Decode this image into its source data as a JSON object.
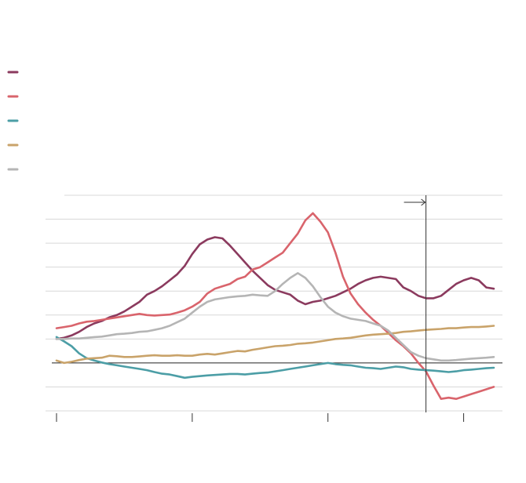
{
  "chart_data": {
    "type": "line",
    "title": "",
    "xlabel": "",
    "ylabel": "",
    "x_range": [
      0,
      58
    ],
    "y_range": [
      -2,
      7
    ],
    "zero_line": 0,
    "grid": "horizontal",
    "legend_position": "top-left",
    "marker": {
      "x": 49,
      "direction": "right"
    },
    "y_ticks": [
      -2,
      -1,
      0,
      1,
      2,
      3,
      4,
      5,
      6,
      7
    ],
    "x_ticks": [
      0,
      18,
      36,
      54
    ],
    "x": [
      0,
      1,
      2,
      3,
      4,
      5,
      6,
      7,
      8,
      9,
      10,
      11,
      12,
      13,
      14,
      15,
      16,
      17,
      18,
      19,
      20,
      21,
      22,
      23,
      24,
      25,
      26,
      27,
      28,
      29,
      30,
      31,
      32,
      33,
      34,
      35,
      36,
      37,
      38,
      39,
      40,
      41,
      42,
      43,
      44,
      45,
      46,
      47,
      48,
      49,
      50,
      51,
      52,
      53,
      54,
      55,
      56,
      57,
      58
    ],
    "series": [
      {
        "name": "",
        "color": "#8b3a5e",
        "values": [
          1.0,
          1.05,
          1.15,
          1.3,
          1.5,
          1.65,
          1.75,
          1.9,
          2.0,
          2.15,
          2.35,
          2.55,
          2.85,
          3.0,
          3.2,
          3.45,
          3.7,
          4.05,
          4.55,
          4.95,
          5.15,
          5.25,
          5.2,
          4.9,
          4.55,
          4.2,
          3.85,
          3.55,
          3.25,
          3.05,
          2.95,
          2.85,
          2.6,
          2.45,
          2.55,
          2.6,
          2.7,
          2.8,
          2.95,
          3.1,
          3.3,
          3.45,
          3.55,
          3.6,
          3.55,
          3.5,
          3.15,
          3.0,
          2.8,
          2.7,
          2.7,
          2.8,
          3.05,
          3.3,
          3.45,
          3.55,
          3.45,
          3.15,
          3.1
        ]
      },
      {
        "name": "",
        "color": "#d9646c",
        "values": [
          1.45,
          1.5,
          1.55,
          1.65,
          1.72,
          1.75,
          1.8,
          1.85,
          1.9,
          1.95,
          2.0,
          2.05,
          2.0,
          1.98,
          2.0,
          2.02,
          2.1,
          2.2,
          2.35,
          2.55,
          2.9,
          3.1,
          3.2,
          3.3,
          3.5,
          3.6,
          3.9,
          4.0,
          4.2,
          4.4,
          4.6,
          5.0,
          5.4,
          5.95,
          6.25,
          5.9,
          5.45,
          4.6,
          3.6,
          2.9,
          2.45,
          2.1,
          1.8,
          1.55,
          1.25,
          0.95,
          0.7,
          0.4,
          0.0,
          -0.35,
          -0.95,
          -1.5,
          -1.45,
          -1.5,
          -1.4,
          -1.3,
          -1.2,
          -1.1,
          -1.0
        ]
      },
      {
        "name": "",
        "color": "#4c9ea6",
        "values": [
          1.08,
          0.9,
          0.7,
          0.4,
          0.2,
          0.1,
          0.02,
          -0.05,
          -0.1,
          -0.15,
          -0.2,
          -0.25,
          -0.3,
          -0.38,
          -0.45,
          -0.48,
          -0.55,
          -0.62,
          -0.58,
          -0.55,
          -0.52,
          -0.5,
          -0.48,
          -0.46,
          -0.46,
          -0.48,
          -0.45,
          -0.42,
          -0.4,
          -0.35,
          -0.3,
          -0.25,
          -0.2,
          -0.15,
          -0.1,
          -0.05,
          0.0,
          -0.05,
          -0.08,
          -0.1,
          -0.15,
          -0.2,
          -0.22,
          -0.25,
          -0.2,
          -0.15,
          -0.18,
          -0.25,
          -0.28,
          -0.3,
          -0.32,
          -0.35,
          -0.38,
          -0.35,
          -0.3,
          -0.28,
          -0.25,
          -0.22,
          -0.2
        ]
      },
      {
        "name": "",
        "color": "#c9a36a",
        "values": [
          0.1,
          0.0,
          0.05,
          0.12,
          0.18,
          0.2,
          0.22,
          0.3,
          0.28,
          0.25,
          0.25,
          0.27,
          0.3,
          0.32,
          0.3,
          0.3,
          0.32,
          0.3,
          0.3,
          0.35,
          0.38,
          0.35,
          0.4,
          0.45,
          0.5,
          0.48,
          0.55,
          0.6,
          0.65,
          0.7,
          0.72,
          0.75,
          0.8,
          0.82,
          0.85,
          0.9,
          0.95,
          1.0,
          1.02,
          1.05,
          1.1,
          1.15,
          1.18,
          1.2,
          1.22,
          1.25,
          1.3,
          1.32,
          1.35,
          1.38,
          1.4,
          1.42,
          1.45,
          1.45,
          1.48,
          1.5,
          1.5,
          1.52,
          1.55
        ]
      },
      {
        "name": "",
        "color": "#b5b5b5",
        "values": [
          1.0,
          1.0,
          1.02,
          1.02,
          1.05,
          1.08,
          1.1,
          1.15,
          1.2,
          1.22,
          1.25,
          1.3,
          1.32,
          1.38,
          1.45,
          1.55,
          1.7,
          1.85,
          2.1,
          2.35,
          2.55,
          2.65,
          2.7,
          2.75,
          2.78,
          2.8,
          2.85,
          2.82,
          2.8,
          3.0,
          3.3,
          3.55,
          3.75,
          3.55,
          3.2,
          2.75,
          2.35,
          2.1,
          1.95,
          1.85,
          1.8,
          1.75,
          1.65,
          1.55,
          1.35,
          1.05,
          0.75,
          0.45,
          0.3,
          0.2,
          0.15,
          0.1,
          0.1,
          0.12,
          0.15,
          0.18,
          0.2,
          0.22,
          0.25
        ]
      }
    ]
  }
}
